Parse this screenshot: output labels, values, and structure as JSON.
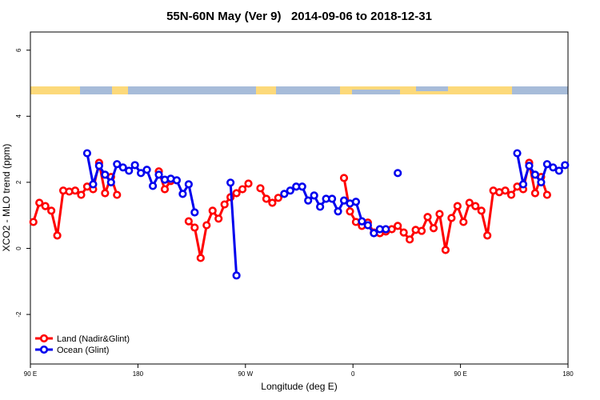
{
  "chart_data": {
    "type": "line",
    "title": "55N-60N May (Ver 9)   2014-09-06 to 2018-12-31",
    "xlabel": "Longitude (deg E)",
    "ylabel": "XCO2 - MLO trend (ppm)",
    "xlim": [
      90,
      540
    ],
    "ylim": [
      -3.5,
      6.55
    ],
    "xticks": [
      {
        "value": 90,
        "label": "90 E"
      },
      180,
      {
        "value": 270,
        "label": "90 W"
      },
      {
        "value": 360,
        "label": "0"
      },
      {
        "value": 450,
        "label": "90 E"
      },
      {
        "value": 540,
        "label": "180"
      }
    ],
    "yticks": [
      -2,
      0,
      2,
      4,
      6
    ],
    "legend": "bottom-left",
    "series": [
      {
        "name": "Land (Nadir&Glint)",
        "color": "#ff0000",
        "x": [
          92.5,
          97.5,
          102.5,
          107.5,
          112.5,
          117.5,
          122.5,
          127.5,
          132.5,
          137.5,
          142.5,
          147.5,
          152.5,
          157.5,
          162.5,
          197.5,
          202.5,
          207.5,
          222.5,
          227.5,
          232.5,
          237.5,
          242.5,
          247.5,
          252.5,
          257.5,
          262.5,
          267.5,
          272.5,
          282.5,
          287.5,
          292.5,
          297.5,
          352.5,
          357.5,
          362.5,
          367.5,
          372.5,
          377.5,
          382.5,
          387.5,
          392.5,
          397.5,
          402.5,
          407.5,
          412.5,
          417.5,
          422.5,
          427.5,
          432.5,
          437.5,
          442.5,
          447.5,
          452.5,
          457.5,
          462.5,
          467.5,
          472.5,
          477.5,
          482.5,
          487.5,
          492.5,
          497.5,
          502.5,
          507.5,
          512.5,
          517.5,
          522.5
        ],
        "values": [
          0.8,
          1.38,
          1.28,
          1.14,
          0.39,
          1.75,
          1.72,
          1.75,
          1.62,
          1.87,
          1.79,
          2.59,
          1.67,
          2.16,
          1.62,
          2.33,
          1.79,
          2.04,
          0.82,
          0.63,
          -0.29,
          0.7,
          1.14,
          0.9,
          1.33,
          1.55,
          1.67,
          1.79,
          1.96,
          1.82,
          1.5,
          1.38,
          1.53,
          2.13,
          1.12,
          0.8,
          0.68,
          0.78,
          0.48,
          0.46,
          0.51,
          0.58,
          0.68,
          0.48,
          0.27,
          0.56,
          0.53,
          0.95,
          0.61,
          1.04,
          -0.05,
          0.92,
          1.28,
          0.8,
          1.38,
          1.28,
          1.14,
          0.39,
          1.75,
          1.7,
          1.75,
          1.62,
          1.87,
          1.79,
          2.59,
          1.67,
          2.16,
          1.62
        ]
      },
      {
        "name": "Ocean (Glint)",
        "color": "#0000ee",
        "x": [
          137.5,
          142.5,
          147.5,
          152.5,
          157.5,
          162.5,
          167.5,
          172.5,
          177.5,
          182.5,
          187.5,
          192.5,
          197.5,
          202.5,
          207.5,
          212.5,
          217.5,
          222.5,
          227.5,
          257.5,
          262.5,
          302.5,
          307.5,
          312.5,
          317.5,
          322.5,
          327.5,
          332.5,
          337.5,
          342.5,
          347.5,
          352.5,
          357.5,
          362.5,
          367.5,
          372.5,
          377.5,
          382.5,
          387.5,
          397.5,
          497.5,
          502.5,
          507.5,
          512.5,
          517.5,
          522.5,
          527.5,
          532.5,
          537.5
        ],
        "values": [
          2.88,
          1.94,
          2.5,
          2.23,
          2.0,
          2.55,
          2.45,
          2.35,
          2.52,
          2.28,
          2.38,
          1.89,
          2.23,
          2.08,
          2.11,
          2.06,
          1.65,
          1.94,
          1.09,
          1.99,
          -0.82,
          1.65,
          1.75,
          1.87,
          1.87,
          1.45,
          1.6,
          1.26,
          1.5,
          1.5,
          1.12,
          1.45,
          1.36,
          1.41,
          0.82,
          0.7,
          0.46,
          0.58,
          0.58,
          2.28,
          2.88,
          1.94,
          2.5,
          2.23,
          2.0,
          2.55,
          2.45,
          2.35,
          2.52
        ]
      }
    ]
  }
}
